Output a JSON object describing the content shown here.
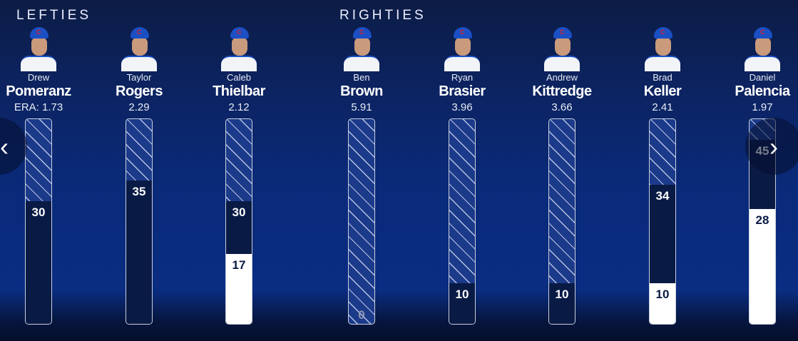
{
  "headers": {
    "lefties": "LEFTIES",
    "righties": "RIGHTIES"
  },
  "scale_max": 50,
  "players": [
    {
      "first": "Drew",
      "last": "Pomeranz",
      "era": "ERA: 1.73",
      "upper": 30,
      "lower": null,
      "group": "lefties"
    },
    {
      "first": "Taylor",
      "last": "Rogers",
      "era": "2.29",
      "upper": 35,
      "lower": null,
      "group": "lefties"
    },
    {
      "first": "Caleb",
      "last": "Thielbar",
      "era": "2.12",
      "upper": 30,
      "lower": 17,
      "group": "lefties"
    },
    {
      "first": "Ben",
      "last": "Brown",
      "era": "5.91",
      "upper": 0,
      "lower": null,
      "group": "righties"
    },
    {
      "first": "Ryan",
      "last": "Brasier",
      "era": "3.96",
      "upper": 10,
      "lower": null,
      "group": "righties"
    },
    {
      "first": "Andrew",
      "last": "Kittredge",
      "era": "3.66",
      "upper": 10,
      "lower": null,
      "group": "righties"
    },
    {
      "first": "Brad",
      "last": "Keller",
      "era": "2.41",
      "upper": 34,
      "lower": 10,
      "group": "righties"
    },
    {
      "first": "Daniel",
      "last": "Palencia",
      "era": "1.97",
      "upper": 45,
      "lower": 28,
      "group": "righties"
    }
  ],
  "nav": {
    "prev": "‹",
    "next": "›"
  }
}
